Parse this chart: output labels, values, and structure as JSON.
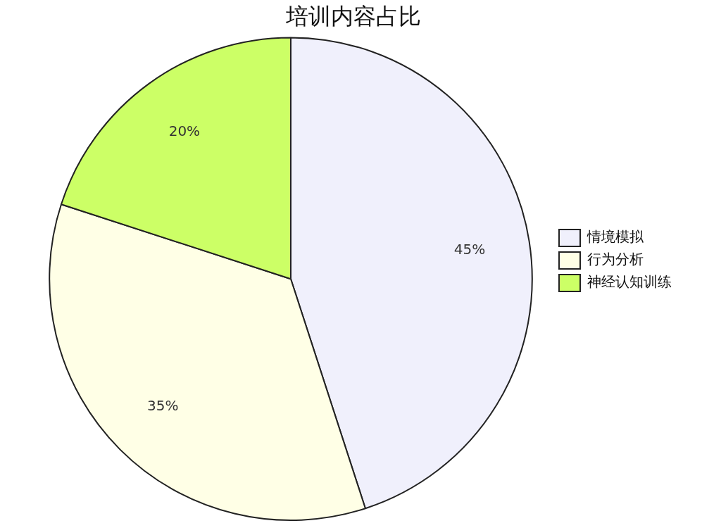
{
  "chart_data": {
    "type": "pie",
    "title": "培训内容占比",
    "categories": [
      "情境模拟",
      "行为分析",
      "神经认知训练"
    ],
    "values": [
      45,
      35,
      20
    ],
    "colors": [
      "#f0f0fc",
      "#ffffe6",
      "#ccff66"
    ],
    "value_labels": [
      "45%",
      "35%",
      "20%"
    ],
    "legend": "right"
  }
}
